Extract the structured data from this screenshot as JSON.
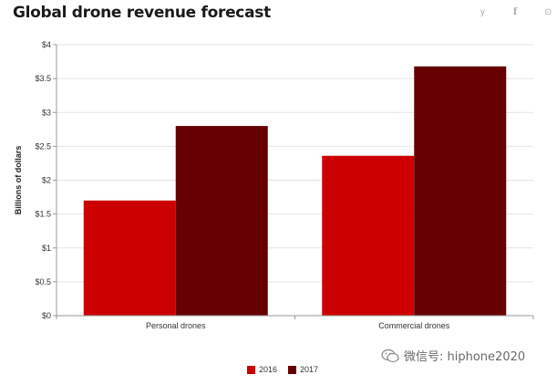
{
  "header": {
    "title": "Global drone revenue forecast",
    "share_icons": [
      "twitter-icon",
      "facebook-icon",
      "pinterest-icon"
    ],
    "share_glyphs": {
      "twitter": "y",
      "facebook": "f",
      "pinterest": "⊙"
    }
  },
  "watermark": {
    "text": "微信号: hiphone2020"
  },
  "colors": {
    "series_2016": "#cc0000",
    "series_2017": "#660000",
    "grid": "#e4e4e4",
    "axis": "#999999"
  },
  "chart_data": {
    "type": "bar",
    "title": "Global drone revenue forecast",
    "xlabel": "",
    "ylabel": "Billions of dollars",
    "categories": [
      "Personal drones",
      "Commercial drones"
    ],
    "series": [
      {
        "name": "2016",
        "values": [
          1.7,
          2.36
        ]
      },
      {
        "name": "2017",
        "values": [
          2.8,
          3.68
        ]
      }
    ],
    "ylim": [
      0,
      4
    ],
    "y_ticks": [
      0,
      0.5,
      1,
      1.5,
      2,
      2.5,
      3,
      3.5,
      4
    ],
    "y_tick_labels": [
      "$0",
      "$0.5",
      "$1",
      "$1.5",
      "$2",
      "$2.5",
      "$3",
      "$3.5",
      "$4"
    ],
    "grid": true,
    "legend_position": "bottom"
  }
}
